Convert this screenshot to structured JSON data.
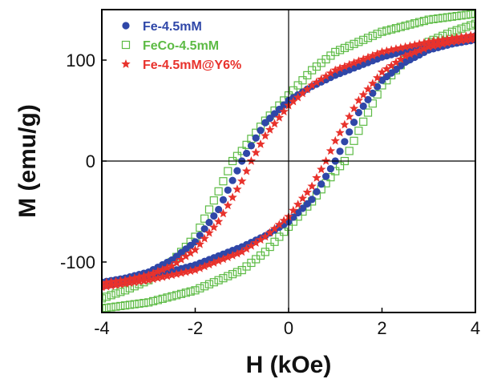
{
  "chart_data": {
    "type": "scatter",
    "title": "",
    "xlabel": "H (kOe)",
    "ylabel": "M (emu/g)",
    "xlim": [
      -4,
      4
    ],
    "ylim": [
      -150,
      150
    ],
    "xticks": [
      -4,
      -2,
      0,
      2,
      4
    ],
    "yticks": [
      -100,
      0,
      100
    ],
    "x_tick_labels": [
      "-4",
      "-2",
      "0",
      "2",
      "4"
    ],
    "y_tick_labels": [
      "-100",
      "0",
      "100"
    ],
    "grid": false,
    "reference_lines": [
      "x = 0",
      "y = 0"
    ],
    "legend_position": "top-left",
    "series": [
      {
        "name": "Fe-4.5mM",
        "color": "#2f47a8",
        "marker": "filled circle",
        "descending_branch": {
          "H": [
            4.0,
            3.0,
            2.0,
            1.0,
            0.5,
            0.0,
            -0.5,
            -1.0,
            -1.5,
            -2.0,
            -2.5,
            -3.0,
            -3.5,
            -4.0
          ],
          "M": [
            124,
            115,
            103,
            85,
            74,
            60,
            38,
            0,
            -48,
            -80,
            -98,
            -110,
            -116,
            -120
          ]
        },
        "ascending_branch": {
          "H": [
            -4.0,
            -3.0,
            -2.0,
            -1.0,
            -0.5,
            0.0,
            0.5,
            1.0,
            1.5,
            2.0,
            2.5,
            3.0,
            3.5,
            4.0
          ],
          "M": [
            -124,
            -115,
            -103,
            -85,
            -74,
            -60,
            -38,
            0,
            48,
            80,
            98,
            110,
            116,
            120
          ]
        }
      },
      {
        "name": "FeCo-4.5mM",
        "color": "#5dbb45",
        "marker": "open square",
        "descending_branch": {
          "H": [
            4.0,
            3.0,
            2.0,
            1.0,
            0.5,
            0.0,
            -0.5,
            -1.0,
            -1.2,
            -1.5,
            -2.0,
            -2.5,
            -3.0,
            -3.5,
            -4.0
          ],
          "M": [
            146,
            140,
            128,
            108,
            90,
            65,
            40,
            10,
            0,
            -30,
            -75,
            -100,
            -118,
            -128,
            -136
          ]
        },
        "ascending_branch": {
          "H": [
            -4.0,
            -3.0,
            -2.0,
            -1.0,
            -0.5,
            0.0,
            0.5,
            1.0,
            1.2,
            1.5,
            2.0,
            2.5,
            3.0,
            3.5,
            4.0
          ],
          "M": [
            -146,
            -140,
            -128,
            -108,
            -90,
            -65,
            -40,
            -10,
            0,
            30,
            75,
            100,
            118,
            128,
            136
          ]
        }
      },
      {
        "name": "Fe-4.5mM@Y6%",
        "color": "#e8322c",
        "marker": "filled star",
        "descending_branch": {
          "H": [
            4.0,
            3.0,
            2.0,
            1.0,
            0.5,
            0.0,
            -0.5,
            -0.8,
            -1.0,
            -1.5,
            -2.0,
            -2.5,
            -3.0,
            -3.5,
            -4.0
          ],
          "M": [
            125,
            118,
            108,
            90,
            75,
            55,
            25,
            0,
            -20,
            -60,
            -88,
            -104,
            -113,
            -118,
            -121
          ]
        },
        "ascending_branch": {
          "H": [
            -4.0,
            -3.0,
            -2.0,
            -1.0,
            -0.5,
            0.0,
            0.5,
            0.8,
            1.0,
            1.5,
            2.0,
            2.5,
            3.0,
            3.5,
            4.0
          ],
          "M": [
            -125,
            -118,
            -108,
            -90,
            -75,
            -55,
            -25,
            0,
            20,
            60,
            88,
            104,
            113,
            118,
            121
          ]
        }
      }
    ]
  }
}
